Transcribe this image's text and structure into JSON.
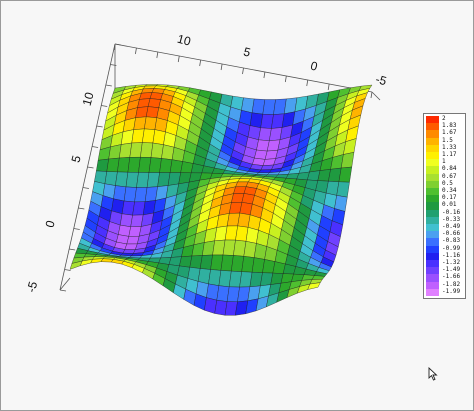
{
  "chart_data": {
    "type": "surface3d",
    "function": "sin(x)*sin(y) style periodic surface",
    "x_axis": {
      "ticks": [
        "10",
        "5",
        "0",
        "-5"
      ]
    },
    "y_axis": {
      "ticks": [
        "10",
        "5",
        "0",
        "-5"
      ]
    },
    "xlim": [
      -5,
      10
    ],
    "ylim": [
      -5,
      10
    ],
    "zlim": [
      -1.99,
      2
    ],
    "mesh": "visible",
    "colorbar": {
      "position": "right",
      "labels": [
        "2",
        "1.83",
        "1.67",
        "1.5",
        "1.33",
        "1.17",
        "1",
        "0.84",
        "0.67",
        "0.5",
        "0.34",
        "0.17",
        "0.01",
        "-0.16",
        "-0.33",
        "-0.49",
        "-0.66",
        "-0.83",
        "-0.99",
        "-1.16",
        "-1.32",
        "-1.49",
        "-1.66",
        "-1.82",
        "-1.99"
      ],
      "colors": [
        "#ff2a00",
        "#ff5a00",
        "#ff8a00",
        "#ffb300",
        "#ffd600",
        "#fff000",
        "#f0ff20",
        "#c8f020",
        "#a8e030",
        "#7fd030",
        "#4fc030",
        "#2ca82c",
        "#1f9a40",
        "#20a070",
        "#30b0a0",
        "#40c0d0",
        "#4aa0f0",
        "#3a70ff",
        "#2040ff",
        "#2020f0",
        "#4a30ff",
        "#7040ff",
        "#9a50ff",
        "#c060ff",
        "#e080ff"
      ]
    }
  }
}
